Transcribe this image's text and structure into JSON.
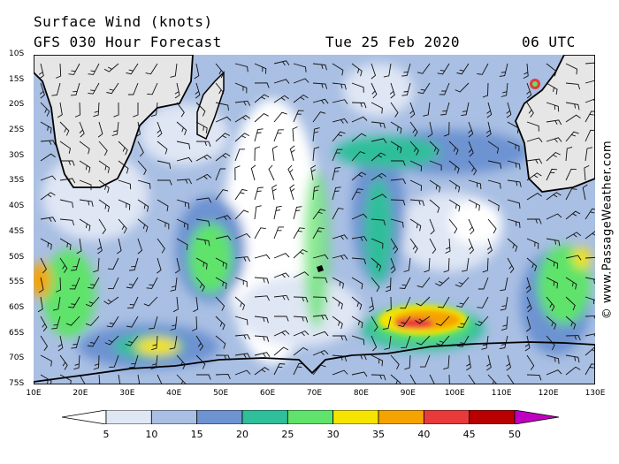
{
  "header": {
    "title": "Surface Wind (knots)",
    "model": "GFS 030 Hour Forecast",
    "date": "Tue 25 Feb 2020",
    "time": "06 UTC"
  },
  "credit": "© www.PassageWeather.com",
  "map": {
    "lat_labels": [
      "10S",
      "15S",
      "20S",
      "25S",
      "30S",
      "35S",
      "40S",
      "45S",
      "50S",
      "55S",
      "60S",
      "65S",
      "70S",
      "75S"
    ],
    "lon_labels": [
      "10E",
      "20E",
      "30E",
      "40E",
      "50E",
      "60E",
      "70E",
      "80E",
      "90E",
      "100E",
      "110E",
      "120E",
      "130E"
    ],
    "lat_range": [
      -10,
      -75
    ],
    "lon_range": [
      10,
      130
    ]
  },
  "legend": {
    "values": [
      "5",
      "10",
      "15",
      "20",
      "25",
      "30",
      "35",
      "40",
      "45",
      "50"
    ],
    "colors": [
      "#ffffff",
      "#dfe6f4",
      "#a9bfe3",
      "#6d93d1",
      "#2fbf9a",
      "#5fe36a",
      "#f5e400",
      "#f5a300",
      "#e83a3a",
      "#b80000",
      "#c000c0"
    ]
  }
}
